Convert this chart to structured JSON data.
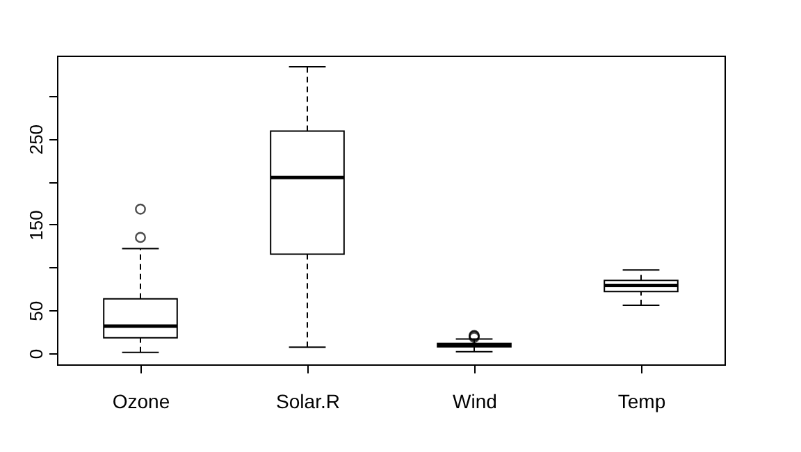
{
  "chart_data": {
    "type": "box",
    "categories": [
      "Ozone",
      "Solar.R",
      "Wind",
      "Temp"
    ],
    "boxes": [
      {
        "low": 1,
        "q1": 18,
        "median": 31.5,
        "q3": 63.5,
        "high": 122,
        "outliers": [
          135,
          168
        ]
      },
      {
        "low": 7,
        "q1": 115.5,
        "median": 205,
        "q3": 259,
        "high": 334
      },
      {
        "low": 1.7,
        "q1": 7.4,
        "median": 9.7,
        "q3": 11.5,
        "high": 16.6,
        "outliers": [
          18.4,
          20.1,
          20.7
        ]
      },
      {
        "low": 56,
        "q1": 72,
        "median": 79,
        "q3": 85,
        "high": 97
      }
    ],
    "ylim": [
      -13,
      347
    ],
    "yticks": [
      0,
      50,
      {
        "value": 100,
        "label": null
      },
      150,
      {
        "value": 200,
        "label": null
      },
      250,
      {
        "value": 300,
        "label": null
      }
    ],
    "grid": false
  }
}
